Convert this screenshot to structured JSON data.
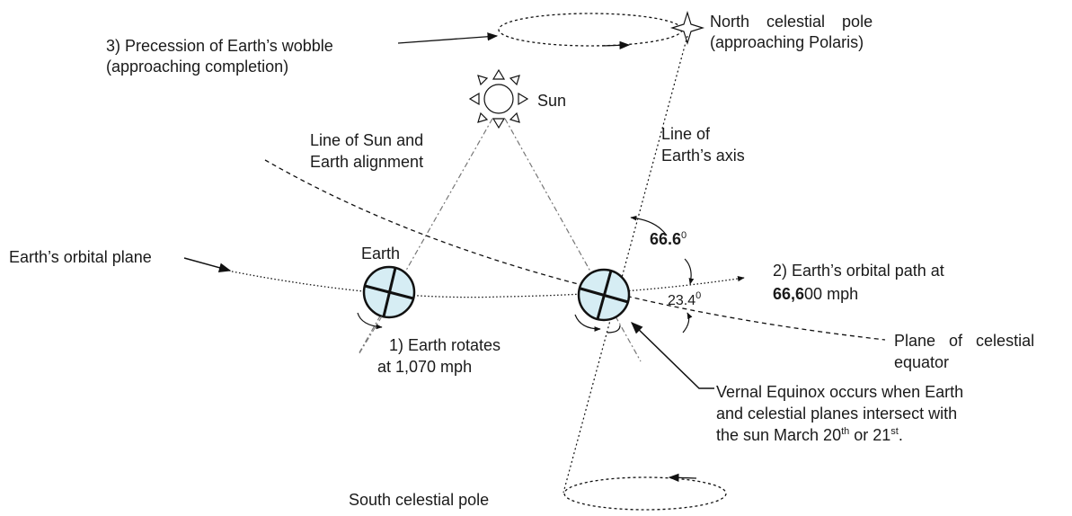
{
  "precession": {
    "lines": [
      "3) Precession of Earth’s wobble",
      "(approaching completion)"
    ]
  },
  "north_pole": {
    "lines": [
      "North celestial pole",
      "(approaching Polaris)"
    ]
  },
  "sun": {
    "label": "Sun"
  },
  "sun_earth_line": {
    "lines": [
      "Line of Sun and",
      "Earth alignment"
    ]
  },
  "axis_line": {
    "lines": [
      "Line of",
      "Earth’s axis"
    ]
  },
  "orbital_plane": {
    "label": "Earth’s orbital plane"
  },
  "earth": {
    "label": "Earth"
  },
  "axis_angle": {
    "value": "66.6",
    "unit": "0"
  },
  "orbital_path": {
    "lines": [
      "2) Earth’s orbital path at"
    ],
    "speed": [
      "66,6",
      "00 mph"
    ]
  },
  "tilt_angle": {
    "value": "23.4",
    "unit": "0"
  },
  "rotation": {
    "lines": [
      "1) Earth rotates",
      "at 1,070 mph"
    ]
  },
  "celestial_equator": {
    "lines": [
      "Plane of celestial",
      "equator"
    ]
  },
  "vernal_equinox": {
    "lines": [
      "Vernal Equinox occurs when Earth",
      "and celestial planes intersect with"
    ],
    "last_line": [
      "the sun March 20",
      "th",
      " or 21",
      "st",
      "."
    ]
  },
  "south_pole": {
    "label": "South celestial pole"
  }
}
